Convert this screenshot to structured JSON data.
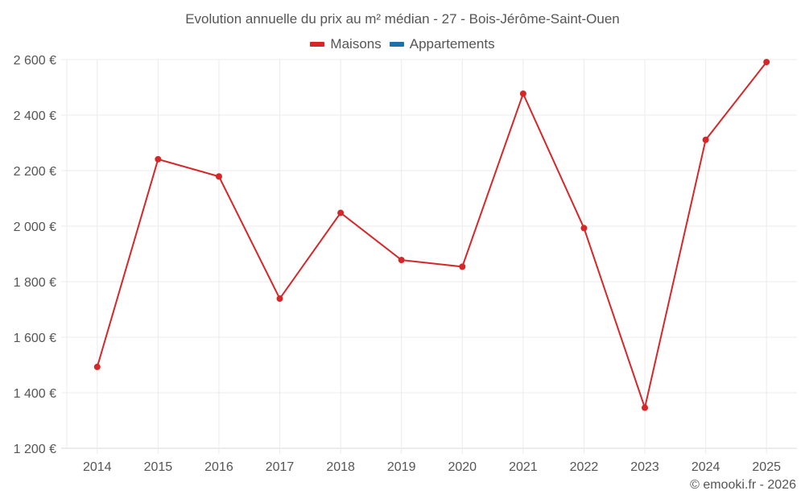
{
  "chart_data": {
    "type": "line",
    "title": "Evolution annuelle du prix au m² médian - 27 - Bois-Jérôme-Saint-Ouen",
    "xlabel": "",
    "ylabel": "",
    "categories": [
      "2014",
      "2015",
      "2016",
      "2017",
      "2018",
      "2019",
      "2020",
      "2021",
      "2022",
      "2023",
      "2024",
      "2025"
    ],
    "series": [
      {
        "name": "Maisons",
        "color": "#d62728",
        "values": [
          1493,
          2241,
          2179,
          1739,
          2048,
          1878,
          1854,
          2477,
          1993,
          1346,
          2311,
          2591
        ]
      },
      {
        "name": "Appartements",
        "color": "#1f6fa8",
        "values": []
      }
    ],
    "ylim": [
      1200,
      2600
    ],
    "yticks": [
      1200,
      1400,
      1600,
      1800,
      2000,
      2200,
      2400,
      2600
    ],
    "ytick_labels": [
      "1 200 €",
      "1 400 €",
      "1 600 €",
      "1 800 €",
      "2 000 €",
      "2 200 €",
      "2 400 €",
      "2 600 €"
    ],
    "grid": true,
    "legend_position": "top"
  },
  "header": {
    "title": "Evolution annuelle du prix au m² médian - 27 - Bois-Jérôme-Saint-Ouen"
  },
  "legend": {
    "items": [
      {
        "label": "Maisons",
        "color": "#d62728"
      },
      {
        "label": "Appartements",
        "color": "#1f6fa8"
      }
    ]
  },
  "footer": {
    "credit": "© emooki.fr - 2026"
  }
}
